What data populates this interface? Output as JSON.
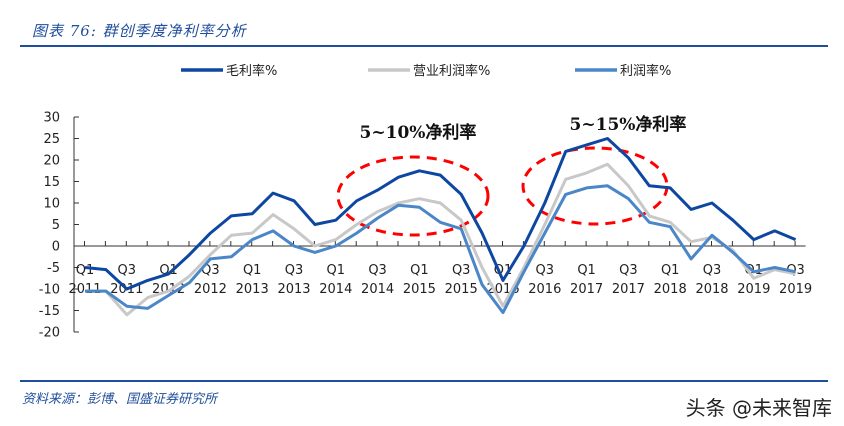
{
  "figure": {
    "title": "图表 76: 群创季度净利率分析",
    "source": "资料来源：彭博、国盛证券研究所",
    "watermark": "头条 @未来智库",
    "rule_color": "#1f4e9c"
  },
  "chart_data": {
    "type": "line",
    "title": "群创季度净利率分析",
    "xlabel": "",
    "ylabel": "",
    "ylim": [
      -20,
      30
    ],
    "yticks": [
      30,
      25,
      20,
      15,
      10,
      5,
      0,
      -5,
      -10,
      -15,
      -20
    ],
    "grid": false,
    "legend_position": "top",
    "x": [
      "Q1 2011",
      "Q2 2011",
      "Q3 2011",
      "Q4 2011",
      "Q1 2012",
      "Q2 2012",
      "Q3 2012",
      "Q4 2012",
      "Q1 2013",
      "Q2 2013",
      "Q3 2013",
      "Q4 2013",
      "Q1 2014",
      "Q2 2014",
      "Q3 2014",
      "Q4 2014",
      "Q1 2015",
      "Q2 2015",
      "Q3 2015",
      "Q4 2015",
      "Q1 2016",
      "Q2 2016",
      "Q3 2016",
      "Q4 2016",
      "Q1 2017",
      "Q2 2017",
      "Q3 2017",
      "Q4 2017",
      "Q1 2018",
      "Q2 2018",
      "Q3 2018",
      "Q4 2018",
      "Q1 2019",
      "Q2 2019",
      "Q3 2019"
    ],
    "xtick_labels": [
      {
        "q": "Q1",
        "y": "2011"
      },
      {
        "q": "Q3",
        "y": "2011"
      },
      {
        "q": "Q1",
        "y": "2012"
      },
      {
        "q": "Q3",
        "y": "2012"
      },
      {
        "q": "Q1",
        "y": "2013"
      },
      {
        "q": "Q3",
        "y": "2013"
      },
      {
        "q": "Q1",
        "y": "2014"
      },
      {
        "q": "Q3",
        "y": "2014"
      },
      {
        "q": "Q1",
        "y": "2015"
      },
      {
        "q": "Q3",
        "y": "2015"
      },
      {
        "q": "Q1",
        "y": "2016"
      },
      {
        "q": "Q3",
        "y": "2016"
      },
      {
        "q": "Q1",
        "y": "2017"
      },
      {
        "q": "Q3",
        "y": "2017"
      },
      {
        "q": "Q1",
        "y": "2018"
      },
      {
        "q": "Q3",
        "y": "2018"
      },
      {
        "q": "Q1",
        "y": "2019"
      },
      {
        "q": "Q3",
        "y": "2019"
      }
    ],
    "series": [
      {
        "name": "毛利率%",
        "color": "#0d47a1",
        "width": 3,
        "values": [
          -5,
          -5.5,
          -10,
          -8,
          -6.5,
          -2,
          3,
          7,
          7.5,
          12.3,
          10.5,
          5,
          6,
          10.5,
          13,
          16,
          17.5,
          16.5,
          12,
          3,
          -8,
          0,
          10,
          22,
          23.5,
          25,
          20.5,
          14,
          13.5,
          8.5,
          10,
          6,
          1.5,
          3.5,
          1.5
        ]
      },
      {
        "name": "营业利润率%",
        "color": "#c8c8c8",
        "width": 3,
        "values": [
          -10.5,
          -10.5,
          -16,
          -12,
          -10.5,
          -7,
          -2,
          2.5,
          3,
          7.3,
          4,
          0,
          1.5,
          5,
          8,
          10,
          11,
          10,
          6,
          -5,
          -14,
          -5,
          5,
          15.5,
          17,
          19,
          14,
          7,
          5.5,
          1,
          2,
          -1,
          -7.5,
          -5.5,
          -6.5
        ]
      },
      {
        "name": "利润率%",
        "color": "#4a86c8",
        "width": 3,
        "values": [
          -10.5,
          -10.5,
          -14,
          -14.5,
          -11.5,
          -8.5,
          -3,
          -2.5,
          1.5,
          3.5,
          0,
          -1.5,
          0,
          3,
          6.5,
          9.5,
          9,
          5.5,
          4,
          -9,
          -15.5,
          -6,
          3,
          12,
          13.5,
          14,
          11,
          5.5,
          4.5,
          -3,
          2.5,
          -1.5,
          -6,
          -5,
          -6
        ]
      }
    ],
    "annotations": [
      {
        "text": "5~10%净利率",
        "ellipse_color": "#ff0000",
        "style": "dashed"
      },
      {
        "text": "5~15%净利率",
        "ellipse_color": "#ff0000",
        "style": "dashed"
      }
    ]
  }
}
